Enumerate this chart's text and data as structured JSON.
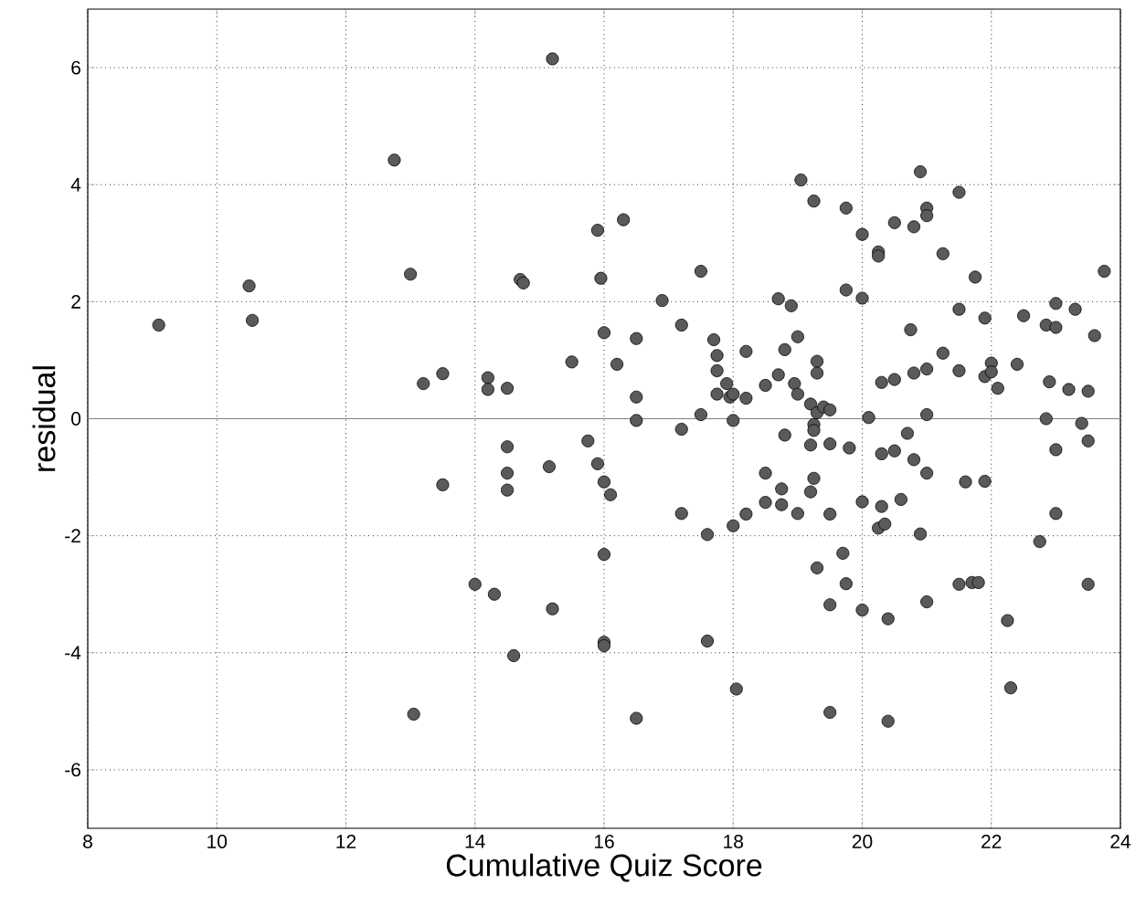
{
  "chart_data": {
    "type": "scatter",
    "xlabel": "Cumulative Quiz Score",
    "ylabel": "residual",
    "x": [
      9.1,
      10.5,
      10.55,
      12.75,
      13.0,
      13.2,
      13.05,
      13.5,
      13.5,
      14.0,
      14.2,
      14.2,
      14.3,
      14.5,
      14.5,
      14.5,
      14.5,
      14.6,
      14.7,
      14.75,
      15.15,
      15.2,
      15.2,
      15.5,
      15.75,
      15.9,
      15.9,
      15.95,
      16.0,
      16.0,
      16.1,
      16.0,
      16.0,
      16.0,
      16.2,
      16.3,
      16.5,
      16.5,
      16.5,
      16.5,
      16.9,
      17.2,
      17.2,
      17.2,
      17.5,
      17.5,
      17.6,
      17.6,
      17.7,
      17.75,
      17.75,
      17.75,
      17.9,
      17.95,
      18.0,
      18.0,
      18.0,
      18.05,
      18.2,
      18.2,
      18.2,
      18.5,
      18.5,
      18.5,
      18.7,
      18.7,
      18.75,
      18.75,
      18.8,
      18.8,
      18.9,
      18.95,
      19.0,
      19.0,
      19.0,
      19.05,
      19.2,
      19.2,
      19.25,
      19.2,
      19.25,
      19.25,
      19.3,
      19.3,
      19.3,
      19.3,
      19.25,
      19.4,
      19.5,
      19.5,
      19.5,
      19.5,
      19.5,
      19.7,
      19.75,
      19.75,
      19.75,
      19.8,
      20.0,
      20.0,
      20.0,
      20.0,
      20.1,
      20.25,
      20.25,
      20.3,
      20.3,
      20.3,
      20.25,
      20.35,
      20.4,
      20.4,
      20.5,
      20.5,
      20.5,
      20.6,
      20.7,
      20.75,
      20.8,
      20.8,
      20.8,
      20.9,
      20.9,
      21.0,
      21.0,
      21.0,
      21.0,
      21.0,
      21.0,
      21.25,
      21.25,
      21.5,
      21.5,
      21.5,
      21.5,
      21.6,
      21.7,
      21.8,
      21.75,
      21.9,
      21.9,
      21.9,
      22.0,
      22.0,
      22.1,
      22.25,
      22.3,
      22.4,
      22.5,
      22.75,
      22.85,
      22.85,
      22.9,
      23.0,
      23.0,
      23.0,
      23.0,
      23.2,
      23.3,
      23.4,
      23.5,
      23.5,
      23.5,
      23.6,
      23.75
    ],
    "values": [
      1.6,
      2.27,
      1.68,
      4.42,
      2.47,
      0.6,
      -5.05,
      0.77,
      -1.13,
      -2.83,
      0.7,
      0.5,
      -3.0,
      0.52,
      -0.48,
      -0.93,
      -1.22,
      -4.05,
      2.38,
      2.32,
      -0.82,
      6.15,
      -3.25,
      0.97,
      -0.38,
      3.22,
      -0.77,
      2.4,
      1.47,
      -1.08,
      -1.3,
      -2.32,
      -3.82,
      -3.88,
      0.93,
      3.4,
      1.37,
      0.37,
      -0.03,
      -5.12,
      2.02,
      1.6,
      -0.18,
      -1.62,
      2.52,
      0.07,
      -1.98,
      -3.8,
      1.35,
      1.08,
      0.82,
      0.42,
      0.6,
      0.37,
      0.42,
      -0.03,
      -1.83,
      -4.62,
      1.15,
      0.35,
      -1.63,
      0.57,
      -0.93,
      -1.43,
      2.05,
      0.75,
      -1.2,
      -1.47,
      1.18,
      -0.28,
      1.93,
      0.6,
      1.4,
      0.42,
      -1.62,
      4.08,
      0.25,
      -0.45,
      -1.02,
      -1.25,
      -0.1,
      -0.2,
      0.98,
      0.78,
      0.1,
      -2.55,
      3.72,
      0.2,
      0.15,
      -0.43,
      -1.63,
      -3.18,
      -5.02,
      -2.3,
      -2.82,
      3.6,
      2.2,
      -0.5,
      3.15,
      2.06,
      -1.42,
      -3.27,
      0.02,
      2.85,
      2.78,
      0.62,
      -0.6,
      -1.5,
      -1.87,
      -1.8,
      -3.42,
      -5.17,
      3.35,
      0.67,
      -0.55,
      -1.38,
      -0.25,
      1.52,
      3.28,
      0.78,
      -0.7,
      4.22,
      -1.97,
      3.6,
      3.47,
      0.85,
      0.07,
      -0.93,
      -3.13,
      2.82,
      1.12,
      3.87,
      1.87,
      0.82,
      -2.83,
      -1.08,
      -2.8,
      -2.8,
      2.42,
      1.72,
      0.72,
      -1.07,
      0.95,
      0.8,
      0.52,
      -3.45,
      -4.6,
      0.93,
      1.76,
      -2.1,
      1.6,
      0.0,
      0.63,
      1.97,
      1.56,
      -0.53,
      -1.62,
      0.5,
      1.87,
      -0.08,
      0.47,
      -0.38,
      -2.83,
      1.42,
      2.52
    ],
    "color": "#5a5a5a",
    "marker": "circle",
    "grid": true,
    "xlim": [
      8,
      24
    ],
    "ylim": [
      -7,
      7
    ],
    "xticks": [
      8,
      10,
      12,
      14,
      16,
      18,
      20,
      22,
      24
    ],
    "yticks": [
      -6,
      -4,
      -2,
      0,
      2,
      4,
      6
    ],
    "ref_lines": [
      {
        "axis": "y",
        "value": 0,
        "color": "#808080"
      }
    ]
  }
}
